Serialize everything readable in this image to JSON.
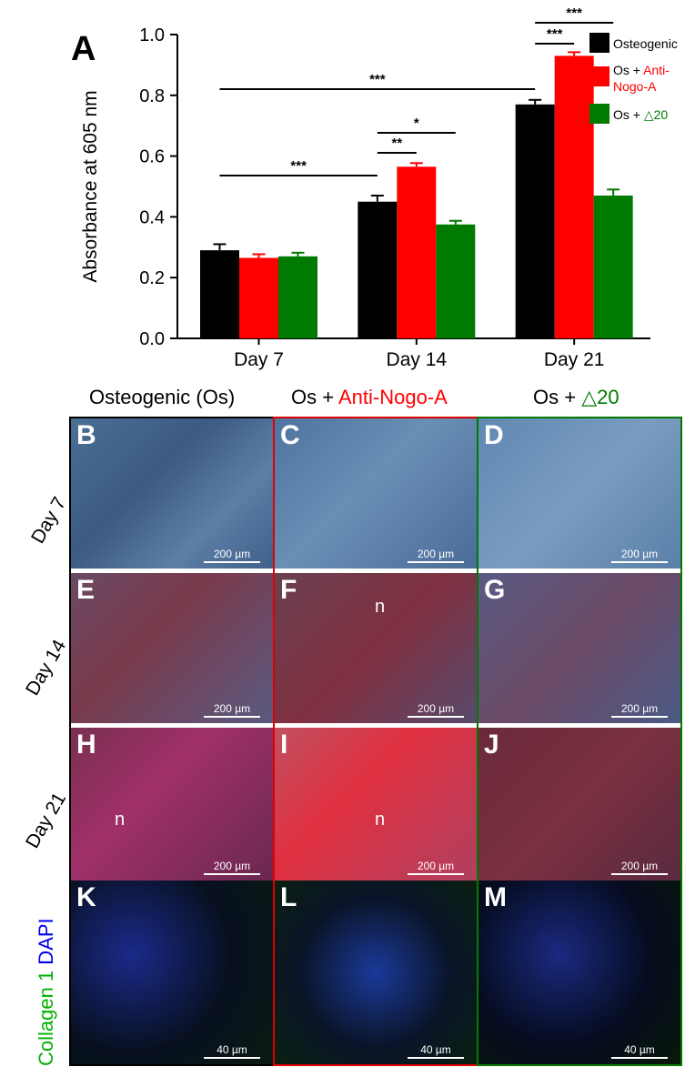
{
  "panel_a_letter": "A",
  "chart_data": {
    "type": "bar",
    "categories": [
      "Day 7",
      "Day 14",
      "Day 21"
    ],
    "series": [
      {
        "name": "Osteogenic",
        "color": "#000000",
        "values": [
          0.29,
          0.45,
          0.77
        ],
        "errors": [
          0.02,
          0.02,
          0.015
        ]
      },
      {
        "name": "Os + Anti-Nogo-A",
        "color": "#ff0000",
        "values": [
          0.265,
          0.565,
          0.93
        ],
        "errors": [
          0.012,
          0.012,
          0.012
        ]
      },
      {
        "name": "Os + △20",
        "color": "#007a00",
        "values": [
          0.27,
          0.375,
          0.47
        ],
        "errors": [
          0.012,
          0.012,
          0.02
        ]
      }
    ],
    "ylabel": "Absorbance at 605 nm",
    "ylim": [
      0,
      1.0
    ],
    "yticks": [
      "0.0",
      "0.2",
      "0.4",
      "0.6",
      "0.8",
      "1.0"
    ],
    "legend": [
      {
        "prefix": "",
        "highlight": "Osteogenic",
        "prefix_color": "#000000",
        "highlight_color": "#000000",
        "swatch": "#000000"
      },
      {
        "prefix": "Os + ",
        "highlight": "Anti-Nogo-A",
        "prefix_color": "#000000",
        "highlight_color": "#ff0000",
        "swatch": "#ff0000"
      },
      {
        "prefix": "Os + ",
        "highlight": "△20",
        "prefix_color": "#000000",
        "highlight_color": "#007a00",
        "swatch": "#007a00"
      }
    ],
    "legend_position": "top-right",
    "significance": [
      {
        "label": "***",
        "from": "Day 7 Osteogenic",
        "to": "Day 14 Osteogenic"
      },
      {
        "label": "**",
        "from": "Day 14 Osteogenic",
        "to": "Day 14 Os + Anti-Nogo-A"
      },
      {
        "label": "*",
        "from": "Day 14 Osteogenic",
        "to": "Day 14 Os + △20"
      },
      {
        "label": "***",
        "from": "Day 7 Osteogenic",
        "to": "Day 21 Osteogenic"
      },
      {
        "label": "***",
        "from": "Day 21 Osteogenic",
        "to": "Day 21 Os + Anti-Nogo-A"
      },
      {
        "label": "***",
        "from": "Day 21 Osteogenic",
        "to": "Day 21 Os + △20"
      }
    ]
  },
  "column_headers": [
    {
      "prefix": "Osteogenic (Os)",
      "highlight": "",
      "highlight_color": "#000000"
    },
    {
      "prefix": "Os + ",
      "highlight": "Anti-Nogo-A",
      "highlight_color": "#ff0000"
    },
    {
      "prefix": "Os + ",
      "highlight": "△20",
      "highlight_color": "#007a00"
    }
  ],
  "row_labels": [
    "Day 7",
    "Day 14",
    "Day 21"
  ],
  "if_row_label": {
    "part1": "Collagen 1",
    "part1_color": "#00b000",
    "part2": "DAPI",
    "part2_color": "#0000ee"
  },
  "panels": [
    {
      "letter": "B",
      "scale": "200 µm",
      "n": ""
    },
    {
      "letter": "C",
      "scale": "200 µm",
      "n": ""
    },
    {
      "letter": "D",
      "scale": "200 µm",
      "n": ""
    },
    {
      "letter": "E",
      "scale": "200 µm",
      "n": ""
    },
    {
      "letter": "F",
      "scale": "200 µm",
      "n": "n"
    },
    {
      "letter": "G",
      "scale": "200 µm",
      "n": ""
    },
    {
      "letter": "H",
      "scale": "200 µm",
      "n": "n"
    },
    {
      "letter": "I",
      "scale": "200 µm",
      "n": "n"
    },
    {
      "letter": "J",
      "scale": "200 µm",
      "n": ""
    },
    {
      "letter": "K",
      "scale": "40 µm",
      "n": ""
    },
    {
      "letter": "L",
      "scale": "40 µm",
      "n": ""
    },
    {
      "letter": "M",
      "scale": "40 µm",
      "n": ""
    }
  ]
}
